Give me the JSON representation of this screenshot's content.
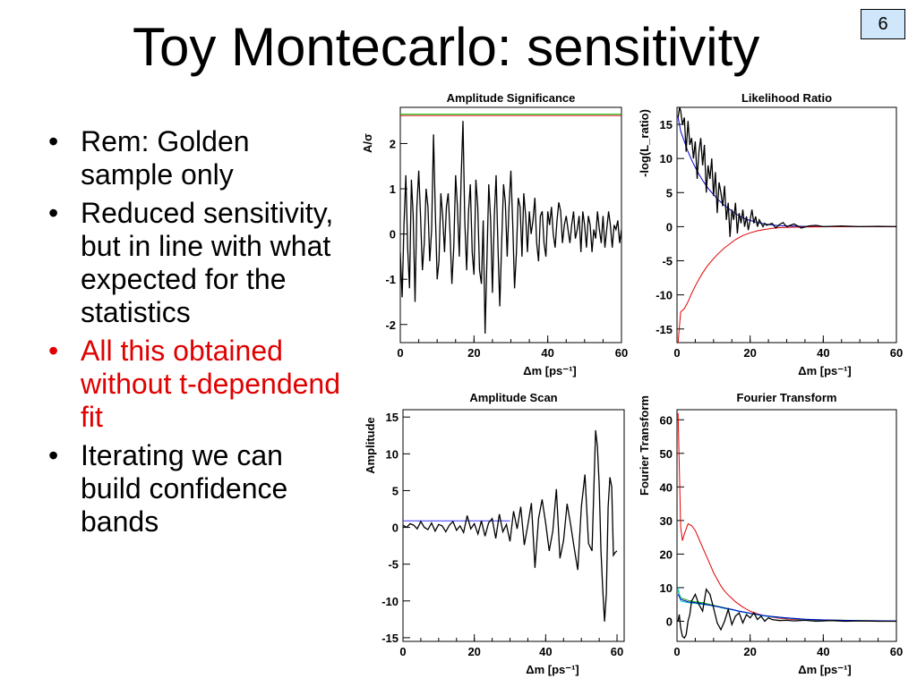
{
  "slide": {
    "title": "Toy Montecarlo: sensitivity",
    "page_number": "6",
    "bullets": [
      {
        "text": "Rem: Golden sample only",
        "color": "#000000"
      },
      {
        "text": "Reduced sensitivity, but in line with what expected for the statistics",
        "color": "#000000"
      },
      {
        "text": "All this obtained without t-dependend fit",
        "color": "#e00000"
      },
      {
        "text": "Iterating we can build confidence bands",
        "color": "#000000"
      }
    ]
  },
  "chart_data": [
    {
      "type": "line",
      "title": "Amplitude Significance",
      "xlabel": "Δm [ps⁻¹]",
      "ylabel": "A/σ",
      "xlim": [
        0,
        60
      ],
      "ylim": [
        -2.4,
        2.8
      ],
      "xticks": [
        0,
        20,
        40,
        60
      ],
      "yticks": [
        -2,
        -1,
        0,
        1,
        2
      ],
      "grid": false,
      "series": [
        {
          "color": "#000000",
          "x": [
            0,
            0.5,
            1,
            1.5,
            2,
            2.5,
            3,
            3.5,
            4,
            4.5,
            5,
            5.5,
            6,
            6.5,
            7,
            7.5,
            8,
            8.5,
            9,
            9.5,
            10,
            10.5,
            11,
            11.5,
            12,
            12.5,
            13,
            13.5,
            14,
            14.5,
            15,
            15.5,
            16,
            16.5,
            17,
            17.5,
            18,
            18.5,
            19,
            19.5,
            20,
            20.5,
            21,
            21.5,
            22,
            22.5,
            23,
            23.5,
            24,
            24.5,
            25,
            25.5,
            26,
            26.5,
            27,
            27.5,
            28,
            28.5,
            29,
            29.5,
            30,
            30.5,
            31,
            31.5,
            32,
            32.5,
            33,
            33.5,
            34,
            34.5,
            35,
            35.5,
            36,
            36.5,
            37,
            37.5,
            38,
            38.5,
            39,
            39.5,
            40,
            40.5,
            41,
            41.5,
            42,
            42.5,
            43,
            43.5,
            44,
            44.5,
            45,
            45.5,
            46,
            46.5,
            47,
            47.5,
            48,
            48.5,
            49,
            49.5,
            50,
            50.5,
            51,
            51.5,
            52,
            52.5,
            53,
            53.5,
            54,
            54.5,
            55,
            55.5,
            56,
            56.5,
            57,
            57.5,
            58,
            58.5,
            59,
            59.5,
            60
          ],
          "y": [
            -0.4,
            -1.4,
            0.2,
            1.3,
            -0.3,
            -1.2,
            1.2,
            0.4,
            -1.5,
            0.6,
            1.4,
            0.4,
            -0.8,
            -0.2,
            1,
            0.6,
            -0.6,
            0.1,
            2.2,
            0.5,
            -1,
            -0.6,
            0.9,
            0.4,
            -0.4,
            0.6,
            0.9,
            0,
            -1.1,
            -0.3,
            1.3,
            0.6,
            -0.5,
            1.2,
            2.5,
            0.3,
            -0.8,
            0.5,
            1.1,
            -0.4,
            -0.9,
            1.2,
            0.6,
            -0.8,
            -1.1,
            0.3,
            -2.2,
            -0.6,
            1.1,
            0.3,
            -1.3,
            0.4,
            1.3,
            -0.3,
            -1.6,
            -0.2,
            1.1,
            0.7,
            -0.5,
            0.6,
            1.4,
            0.2,
            -1.2,
            -0.4,
            0.8,
            0.6,
            -0.5,
            0.9,
            0.4,
            -0.4,
            0.5,
            0,
            0.3,
            0.8,
            -0.2,
            -0.6,
            0.4,
            0.5,
            -0.2,
            -0.5,
            0.5,
            0.2,
            0.6,
            0,
            -0.3,
            0.3,
            0.7,
            0.5,
            -0.2,
            0.2,
            0.4,
            0.1,
            -0.2,
            0.2,
            0.5,
            -0.1,
            0.1,
            0.4,
            -0.4,
            0.5,
            0.2,
            -0.3,
            0.4,
            0.2,
            -0.4,
            0.1,
            -0.1,
            0.5,
            0.1,
            -0.2,
            0.4,
            -0.3,
            0.1,
            0.5,
            0.2,
            -0.3,
            0.2,
            0.1,
            0.3,
            -0.2,
            0.1
          ]
        },
        {
          "color": "#00cc00",
          "x": [
            0,
            60
          ],
          "y": [
            2.65,
            2.65
          ]
        },
        {
          "color": "#cc0000",
          "x": [
            0,
            60
          ],
          "y": [
            2.62,
            2.62
          ]
        }
      ]
    },
    {
      "type": "line",
      "title": "Likelihood Ratio",
      "xlabel": "Δm [ps⁻¹]",
      "ylabel": "-log(L_ratio)",
      "xlim": [
        0,
        60
      ],
      "ylim": [
        -17,
        17.5
      ],
      "xticks": [
        0,
        20,
        40,
        60
      ],
      "yticks": [
        -15,
        -10,
        -5,
        0,
        5,
        10,
        15
      ],
      "grid": false,
      "series": [
        {
          "color": "#0000cc",
          "x": [
            0.3,
            1,
            2,
            3,
            4,
            5,
            6,
            7,
            8,
            9,
            10,
            11,
            12,
            13,
            14,
            15,
            16,
            17,
            18,
            19,
            20,
            22,
            24,
            26,
            28,
            30,
            34,
            38,
            45,
            60
          ],
          "y": [
            16,
            14,
            12.5,
            11,
            9.8,
            8.7,
            7.7,
            6.8,
            6,
            5.3,
            4.7,
            4.1,
            3.6,
            3.1,
            2.7,
            2.3,
            1.9,
            1.6,
            1.3,
            1.1,
            0.9,
            0.6,
            0.4,
            0.25,
            0.15,
            0.1,
            0.05,
            0.02,
            0,
            0
          ]
        },
        {
          "color": "#e00000",
          "x": [
            0.3,
            1,
            2,
            3,
            4,
            5,
            6,
            7,
            8,
            9,
            10,
            11,
            12,
            13,
            14,
            15,
            16,
            17,
            18,
            19,
            20,
            22,
            24,
            26,
            28,
            30,
            34,
            38,
            45,
            60
          ],
          "y": [
            -17,
            -12.5,
            -12,
            -11,
            -9.8,
            -8.7,
            -7.7,
            -6.8,
            -6,
            -5.3,
            -4.7,
            -4.1,
            -3.6,
            -3.1,
            -2.7,
            -2.3,
            -1.9,
            -1.6,
            -1.3,
            -1.1,
            -0.9,
            -0.6,
            -0.4,
            -0.25,
            -0.15,
            -0.1,
            -0.05,
            -0.02,
            0,
            0
          ]
        },
        {
          "color": "#000000",
          "x": [
            0.3,
            0.7,
            1,
            1.5,
            2,
            2.5,
            3,
            3.5,
            4,
            4.5,
            5,
            5.5,
            6,
            6.5,
            7,
            7.5,
            8,
            8.5,
            9,
            9.5,
            10,
            10.5,
            11,
            11.5,
            12,
            12.5,
            13,
            13.5,
            14,
            14.5,
            15,
            15.5,
            16,
            16.5,
            17,
            17.5,
            18,
            18.5,
            19,
            19.5,
            20,
            20.5,
            21,
            21.5,
            22,
            22.5,
            23,
            23.5,
            24,
            24.5,
            25,
            26,
            27,
            28,
            29,
            30,
            32,
            34,
            36,
            38,
            40,
            45,
            50,
            55,
            60
          ],
          "y": [
            16,
            17.5,
            17,
            15,
            16,
            11,
            15.5,
            12,
            13,
            10,
            12.5,
            7,
            11,
            13,
            9,
            12,
            5,
            9,
            7,
            10,
            4.5,
            8,
            2,
            6.5,
            5,
            3,
            6,
            1,
            3.5,
            -1.5,
            2.5,
            1,
            3.5,
            -1,
            2,
            0.5,
            2.5,
            0,
            1.5,
            -0.5,
            1,
            2.5,
            0.5,
            1.5,
            0,
            1,
            0.5,
            0,
            0.5,
            0.2,
            0.3,
            0.5,
            -0.2,
            0.3,
            0.6,
            0,
            0.4,
            -0.2,
            0.1,
            0.2,
            0,
            0.1,
            0,
            0.05,
            0
          ]
        }
      ]
    },
    {
      "type": "line",
      "title": "Amplitude Scan",
      "xlabel": "Δm [ps⁻¹]",
      "ylabel": "Amplitude",
      "xlim": [
        0,
        62
      ],
      "ylim": [
        -15.5,
        16
      ],
      "xticks": [
        0,
        20,
        40,
        60
      ],
      "yticks": [
        -15,
        -10,
        -5,
        0,
        5,
        10,
        15
      ],
      "grid": false,
      "series": [
        {
          "color": "#3333ff",
          "x": [
            0,
            30
          ],
          "y": [
            0.9,
            0.9
          ]
        },
        {
          "color": "#000000",
          "x": [
            0,
            1,
            2,
            3,
            4,
            5,
            6,
            7,
            8,
            9,
            10,
            11,
            12,
            13,
            14,
            15,
            16,
            17,
            18,
            19,
            20,
            21,
            22,
            23,
            24,
            25,
            26,
            27,
            28,
            29,
            30,
            31,
            32,
            33,
            34,
            35,
            36,
            37,
            38,
            39,
            40,
            41,
            42,
            43,
            44,
            45,
            46,
            47,
            48,
            49,
            50,
            51,
            52,
            53,
            54,
            54.5,
            55,
            55.5,
            56,
            56.5,
            57,
            57.5,
            58,
            58.5,
            59,
            59.5,
            60
          ],
          "y": [
            0.3,
            0,
            0.5,
            0.3,
            -0.2,
            0.8,
            0,
            -0.3,
            0.6,
            -0.5,
            0.4,
            0.2,
            -0.6,
            0.3,
            0.8,
            -0.4,
            0.2,
            -0.7,
            1.6,
            -0.2,
            0.5,
            -0.9,
            0.9,
            -1.2,
            0.6,
            1.2,
            -1.5,
            1.8,
            -0.6,
            0.4,
            -1.9,
            2.2,
            -0.2,
            2.8,
            -2.4,
            0.3,
            3.3,
            -5.5,
            1.2,
            3.8,
            0.5,
            -3.2,
            -0.5,
            5.2,
            -4.2,
            -1.8,
            3.2,
            0.4,
            -2.8,
            -5.8,
            2.8,
            7.2,
            -2.2,
            -3.2,
            13.2,
            11,
            5.8,
            -3.2,
            -8.5,
            -12.8,
            -9,
            2.8,
            6.8,
            5.5,
            -3.8,
            -3.4,
            -3.2
          ]
        }
      ]
    },
    {
      "type": "line",
      "title": "Fourier Transform",
      "xlabel": "Δm [ps⁻¹]",
      "ylabel": "Fourier Transform",
      "xlim": [
        0,
        60
      ],
      "ylim": [
        -6,
        63
      ],
      "xticks": [
        0,
        20,
        40,
        60
      ],
      "yticks": [
        0,
        10,
        20,
        30,
        40,
        50,
        60
      ],
      "grid": false,
      "series": [
        {
          "color": "#e00000",
          "x": [
            0.3,
            1,
            1.5,
            2,
            3,
            4,
            5,
            6,
            7,
            8,
            9,
            10,
            11,
            12,
            13,
            14,
            15,
            16,
            17,
            18,
            19,
            20,
            22,
            24,
            26,
            28,
            30,
            35,
            40,
            50,
            60
          ],
          "y": [
            62,
            28,
            24,
            26,
            29,
            28.5,
            27,
            24.5,
            22,
            19.5,
            17,
            14.5,
            12.5,
            10.5,
            9,
            7.8,
            6.8,
            5.8,
            5,
            4.2,
            3.6,
            3,
            2.2,
            1.6,
            1.2,
            0.9,
            0.7,
            0.3,
            0.2,
            0.1,
            0
          ]
        },
        {
          "color": "#00aa00",
          "x": [
            0.3,
            1,
            3,
            5,
            7,
            9,
            11,
            13,
            15,
            17,
            19,
            21,
            23,
            25,
            30,
            35,
            40,
            50,
            60
          ],
          "y": [
            9,
            7,
            6.2,
            5.8,
            5.5,
            5,
            4.5,
            4,
            3.5,
            3,
            2.6,
            2.2,
            1.8,
            1.5,
            1,
            0.6,
            0.4,
            0.2,
            0.1
          ]
        },
        {
          "color": "#00cccc",
          "x": [
            0.3,
            1,
            3,
            5,
            7,
            9,
            11,
            13,
            15,
            17,
            19,
            21,
            23,
            25,
            30,
            35,
            40,
            50,
            60
          ],
          "y": [
            10,
            6,
            5.5,
            5.3,
            5,
            4.7,
            4.3,
            3.8,
            3.4,
            2.9,
            2.5,
            2.1,
            1.7,
            1.4,
            0.9,
            0.5,
            0.3,
            0.15,
            0.05
          ]
        },
        {
          "color": "#0000cc",
          "x": [
            0.3,
            1,
            3,
            5,
            7,
            9,
            11,
            13,
            15,
            17,
            19,
            21,
            23,
            25,
            30,
            35,
            40,
            50,
            60
          ],
          "y": [
            8,
            6.5,
            5.8,
            5.5,
            5.2,
            4.8,
            4.4,
            3.9,
            3.5,
            3,
            2.6,
            2.2,
            1.8,
            1.5,
            1,
            0.6,
            0.4,
            0.2,
            0.1
          ]
        },
        {
          "color": "#000000",
          "x": [
            0.3,
            0.6,
            1,
            1.5,
            2,
            2.5,
            3,
            3.5,
            4,
            5,
            6,
            7,
            8,
            9,
            10,
            11,
            12,
            13,
            14,
            15,
            16,
            17,
            18,
            19,
            20,
            21,
            22,
            23,
            24,
            25,
            26,
            28,
            30,
            32,
            35,
            38,
            42,
            46,
            50,
            55,
            60
          ],
          "y": [
            0,
            2,
            -2,
            -4.5,
            -5,
            -4,
            0,
            2,
            6,
            8,
            5,
            3,
            9.5,
            8,
            4,
            -0.5,
            -2.5,
            0,
            3.5,
            -1,
            1.5,
            2.5,
            -0.5,
            2,
            1,
            2.5,
            0.5,
            1.5,
            0,
            1,
            0.5,
            0.2,
            0.3,
            0.1,
            0.3,
            0,
            0.2,
            0,
            0.1,
            0,
            0
          ]
        }
      ]
    }
  ]
}
